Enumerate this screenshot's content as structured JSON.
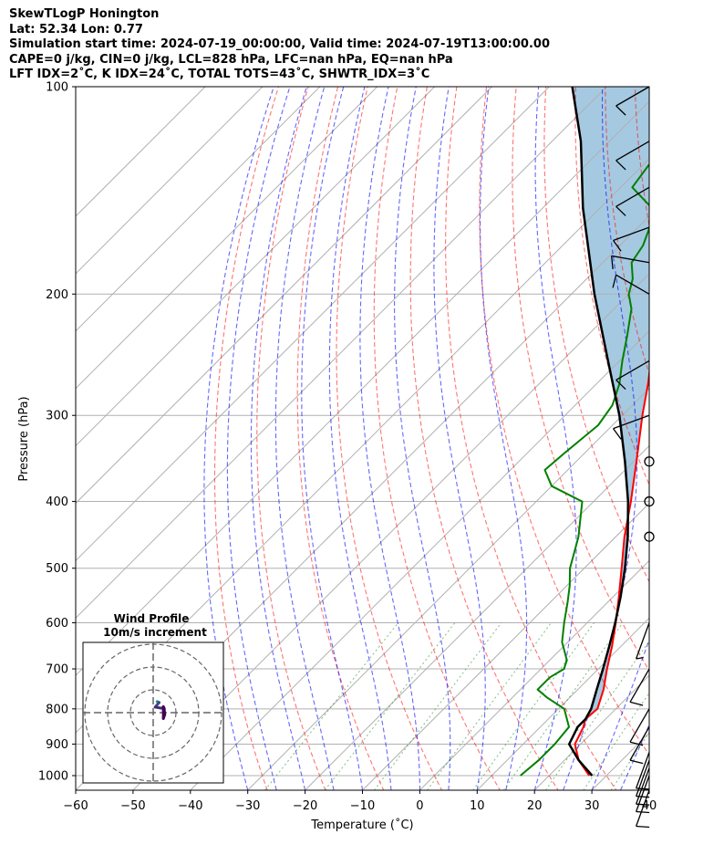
{
  "header": {
    "line1": "SkewTLogP Honington",
    "line2": "Lat: 52.34   Lon: 0.77",
    "line3": "Simulation start time: 2024-07-19_00:00:00, Valid time: 2024-07-19T13:00:00.00",
    "line4": "CAPE=0 j/kg, CIN=0 j/kg, LCL=828 hPa, LFC=nan hPa, EQ=nan hPa",
    "line5": "LFT IDX=2˚C, K IDX=24˚C, TOTAL TOTS=43˚C, SHWTR_IDX=3˚C"
  },
  "chart_data": {
    "type": "skewt",
    "xlabel": "Temperature (˚C)",
    "ylabel": "Pressure (hPa)",
    "xlim": [
      -60,
      40
    ],
    "ylim": [
      1050,
      100
    ],
    "y_scale": "log",
    "x_ticks": [
      "−60",
      "−50",
      "−40",
      "−30",
      "−20",
      "−10",
      "0",
      "10",
      "20",
      "30",
      "40"
    ],
    "y_ticks": [
      "100",
      "200",
      "300",
      "400",
      "500",
      "600",
      "700",
      "800",
      "900",
      "1000"
    ],
    "grid": true,
    "temperature": {
      "color": "#ff0000",
      "p": [
        1000,
        950,
        900,
        850,
        828,
        800,
        750,
        700,
        650,
        600,
        550,
        500,
        450,
        400,
        350,
        300,
        270,
        250,
        230,
        210,
        200,
        190,
        180,
        170,
        160,
        150,
        140,
        130,
        120,
        110,
        100
      ],
      "t": [
        27,
        22.5,
        19,
        17.5,
        16.5,
        16.8,
        14.5,
        11.5,
        8.5,
        5,
        1,
        -3.5,
        -8.5,
        -13.5,
        -19.5,
        -26.5,
        -31,
        -34.5,
        -38,
        -42,
        -44,
        -46,
        -47.5,
        -48.5,
        -48,
        -47,
        -46.5,
        -46,
        -46,
        -47,
        -48
      ]
    },
    "dewpoint": {
      "color": "#008000",
      "p": [
        1000,
        950,
        900,
        850,
        800,
        770,
        750,
        720,
        700,
        680,
        640,
        600,
        560,
        530,
        500,
        450,
        400,
        380,
        360,
        340,
        310,
        290,
        270,
        250,
        230,
        210,
        200,
        190,
        180,
        170,
        160,
        150,
        140,
        130,
        120,
        110,
        100
      ],
      "td": [
        15,
        15.5,
        15.5,
        15,
        11,
        6,
        3,
        3,
        4,
        3,
        -1,
        -4,
        -7,
        -9.5,
        -12.5,
        -16.5,
        -22,
        -30,
        -34,
        -33.5,
        -32.5,
        -33.5,
        -36,
        -39.5,
        -43,
        -47,
        -50,
        -52,
        -55,
        -56,
        -58,
        -61,
        -68,
        -69,
        -67,
        -65,
        -63
      ]
    },
    "parcel": {
      "color": "#000000",
      "p": [
        1000,
        950,
        900,
        850,
        828,
        800,
        750,
        700,
        650,
        600,
        550,
        500,
        450,
        400,
        350,
        300,
        250,
        200,
        150,
        120,
        100
      ],
      "t": [
        27.5,
        22.5,
        18,
        16.5,
        16.5,
        15.7,
        13.3,
        10.8,
        8,
        4.9,
        1.3,
        -2.9,
        -7.9,
        -14,
        -21.5,
        -30.5,
        -42,
        -56,
        -73,
        -85,
        -96
      ]
    },
    "wind_barbs": [
      {
        "p": 1050,
        "speed_kt": 10,
        "dir_deg": 200
      },
      {
        "p": 1000,
        "speed_kt": 10,
        "dir_deg": 200
      },
      {
        "p": 975,
        "speed_kt": 10,
        "dir_deg": 200
      },
      {
        "p": 950,
        "speed_kt": 10,
        "dir_deg": 200
      },
      {
        "p": 925,
        "speed_kt": 10,
        "dir_deg": 200
      },
      {
        "p": 850,
        "speed_kt": 10,
        "dir_deg": 210
      },
      {
        "p": 800,
        "speed_kt": 10,
        "dir_deg": 210
      },
      {
        "p": 700,
        "speed_kt": 10,
        "dir_deg": 210
      },
      {
        "p": 600,
        "speed_kt": 5,
        "dir_deg": 200
      },
      {
        "p": 450,
        "speed_kt": 0,
        "dir_deg": 0
      },
      {
        "p": 400,
        "speed_kt": 0,
        "dir_deg": 0
      },
      {
        "p": 350,
        "speed_kt": 0,
        "dir_deg": 0
      },
      {
        "p": 300,
        "speed_kt": 10,
        "dir_deg": 250
      },
      {
        "p": 250,
        "speed_kt": 10,
        "dir_deg": 240
      },
      {
        "p": 200,
        "speed_kt": 10,
        "dir_deg": 300
      },
      {
        "p": 180,
        "speed_kt": 10,
        "dir_deg": 280
      },
      {
        "p": 160,
        "speed_kt": 10,
        "dir_deg": 250
      },
      {
        "p": 140,
        "speed_kt": 10,
        "dir_deg": 240
      },
      {
        "p": 120,
        "speed_kt": 10,
        "dir_deg": 240
      },
      {
        "p": 100,
        "speed_kt": 10,
        "dir_deg": 240
      }
    ],
    "inset": {
      "title": "Wind Profile",
      "subtitle": "10m/s increment"
    }
  }
}
